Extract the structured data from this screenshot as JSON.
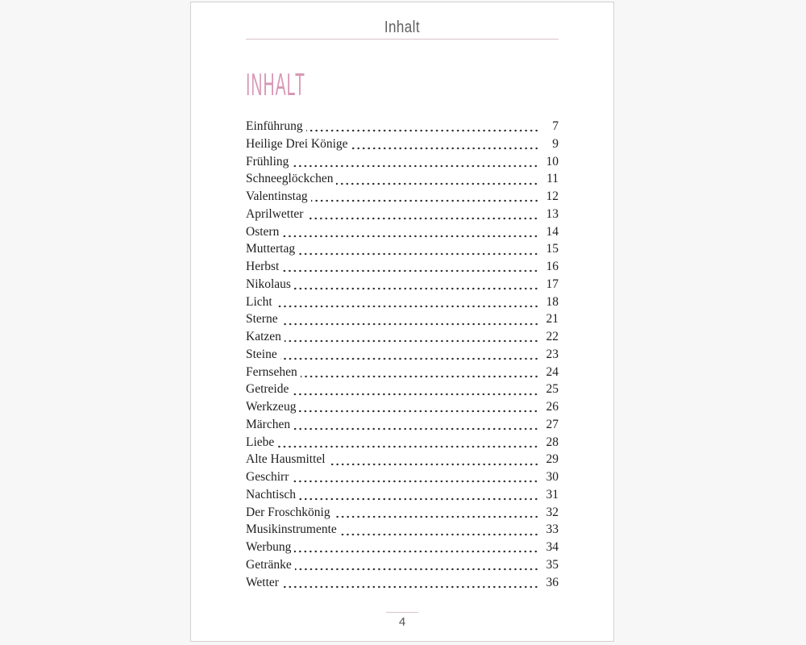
{
  "running_header": {
    "title": "Inhalt"
  },
  "toc": {
    "title": "INHALT",
    "entries": [
      {
        "label": "Einführung",
        "page": "7"
      },
      {
        "label": "Heilige Drei Könige",
        "page": "9"
      },
      {
        "label": "Frühling",
        "page": "10"
      },
      {
        "label": "Schneeglöckchen",
        "page": "11"
      },
      {
        "label": "Valentinstag",
        "page": "12"
      },
      {
        "label": "Aprilwetter",
        "page": "13"
      },
      {
        "label": "Ostern",
        "page": "14"
      },
      {
        "label": "Muttertag",
        "page": "15"
      },
      {
        "label": "Herbst",
        "page": "16"
      },
      {
        "label": "Nikolaus",
        "page": "17"
      },
      {
        "label": "Licht",
        "page": "18"
      },
      {
        "label": "Sterne",
        "page": "21"
      },
      {
        "label": "Katzen",
        "page": "22"
      },
      {
        "label": "Steine",
        "page": "23"
      },
      {
        "label": "Fernsehen",
        "page": "24"
      },
      {
        "label": "Getreide",
        "page": "25"
      },
      {
        "label": "Werkzeug",
        "page": "26"
      },
      {
        "label": "Märchen",
        "page": "27"
      },
      {
        "label": "Liebe",
        "page": "28"
      },
      {
        "label": "Alte Hausmittel",
        "page": "29"
      },
      {
        "label": "Geschirr",
        "page": "30"
      },
      {
        "label": "Nachtisch",
        "page": "31"
      },
      {
        "label": "Der Froschkönig",
        "page": "32"
      },
      {
        "label": "Musikinstrumente",
        "page": "33"
      },
      {
        "label": "Werbung",
        "page": "34"
      },
      {
        "label": "Getränke",
        "page": "35"
      },
      {
        "label": "Wetter",
        "page": "36"
      }
    ]
  },
  "footer": {
    "page_number": "4"
  },
  "colors": {
    "accent_pink": "#d897b5",
    "rule_pink": "#d9c0cd",
    "header_gray": "#606060",
    "body_text": "#1e1e1e",
    "page_border": "#d2d2d2"
  }
}
